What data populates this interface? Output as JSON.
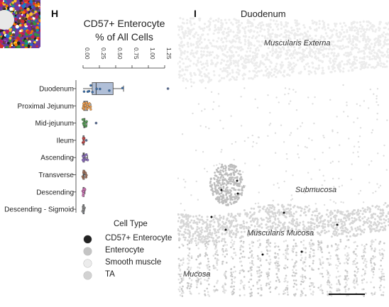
{
  "panels": {
    "h_letter": "H",
    "i_letter": "I"
  },
  "chart_data": {
    "type": "box",
    "title_line1": "CD57+ Enterocyte",
    "title_line2": "% of All Cells",
    "x_ticks": [
      "0.00",
      "0.25",
      "0.50",
      "0.75",
      "1.00",
      "1.25"
    ],
    "xlim": [
      0,
      1.25
    ],
    "orientation": "horizontal",
    "categories": [
      "Duodenum",
      "Proximal Jejunum",
      "Mid-jejunum",
      "Ileum",
      "Ascending",
      "Transverse",
      "Descending",
      "Descending - Sigmoid"
    ],
    "colors": [
      "#3d6fa8",
      "#f0a050",
      "#5aa05a",
      "#c94848",
      "#8e6fc0",
      "#a0705a",
      "#d078b8",
      "#8a8a8a"
    ],
    "box_face": "#b0bfd8",
    "boxes": [
      {
        "min": 0.0,
        "q1": 0.14,
        "median": 0.2,
        "q3": 0.46,
        "max": 0.62,
        "fliers": [
          1.3
        ]
      },
      {
        "min": 0.0,
        "q1": 0.01,
        "median": 0.02,
        "q3": 0.07,
        "max": 0.12,
        "fliers": []
      },
      {
        "min": 0.0,
        "q1": 0.01,
        "median": 0.02,
        "q3": 0.03,
        "max": 0.06,
        "fliers": [
          0.2
        ]
      },
      {
        "min": 0.0,
        "q1": 0.0,
        "median": 0.0,
        "q3": 0.01,
        "max": 0.02,
        "fliers": [
          0.05
        ]
      },
      {
        "min": 0.0,
        "q1": 0.0,
        "median": 0.01,
        "q3": 0.02,
        "max": 0.07,
        "fliers": []
      },
      {
        "min": 0.0,
        "q1": 0.0,
        "median": 0.01,
        "q3": 0.02,
        "max": 0.05,
        "fliers": []
      },
      {
        "min": 0.0,
        "q1": 0.0,
        "median": 0.0,
        "q3": 0.01,
        "max": 0.03,
        "fliers": []
      },
      {
        "min": 0.0,
        "q1": 0.0,
        "median": 0.0,
        "q3": 0.01,
        "max": 0.02,
        "fliers": []
      }
    ],
    "points": [
      [
        0.02,
        0.07,
        0.1,
        0.12,
        0.15,
        0.2,
        0.26,
        0.4,
        0.6
      ],
      [
        0.0,
        0.01,
        0.01,
        0.02,
        0.02,
        0.03,
        0.03,
        0.04,
        0.05,
        0.06,
        0.07,
        0.08,
        0.09,
        0.1,
        0.11,
        0.12,
        0.01,
        0.02,
        0.03,
        0.04
      ],
      [
        0.0,
        0.01,
        0.01,
        0.02,
        0.02,
        0.03,
        0.03,
        0.04,
        0.05,
        0.06,
        0.01,
        0.02
      ],
      [
        0.0,
        0.0,
        0.01,
        0.01,
        0.02,
        0.0,
        0.01
      ],
      [
        0.0,
        0.01,
        0.01,
        0.02,
        0.03,
        0.04,
        0.05,
        0.06,
        0.07,
        0.02,
        0.01,
        0.03,
        0.0
      ],
      [
        0.0,
        0.01,
        0.02,
        0.03,
        0.04,
        0.05,
        0.01,
        0.02,
        0.0
      ],
      [
        0.0,
        0.0,
        0.01,
        0.01,
        0.02,
        0.02,
        0.03,
        0.0,
        0.01,
        0.02
      ],
      [
        0.0,
        0.0,
        0.01,
        0.01,
        0.02,
        0.0,
        0.01,
        0.0,
        0.01
      ]
    ]
  },
  "tissue": {
    "title": "Duodenum",
    "labels": [
      "Muscularis Externa",
      "Submucosa",
      "Muscularis Mucosa",
      "Mucosa"
    ]
  },
  "legend": {
    "title": "Cell Type",
    "items": [
      {
        "label": "CD57+ Enterocyte",
        "color": "#222222"
      },
      {
        "label": "Enterocyte",
        "color": "#c4c4c4"
      },
      {
        "label": "Smooth muscle",
        "color": "#ececec"
      },
      {
        "label": "TA",
        "color": "#d2d2d2"
      }
    ]
  }
}
